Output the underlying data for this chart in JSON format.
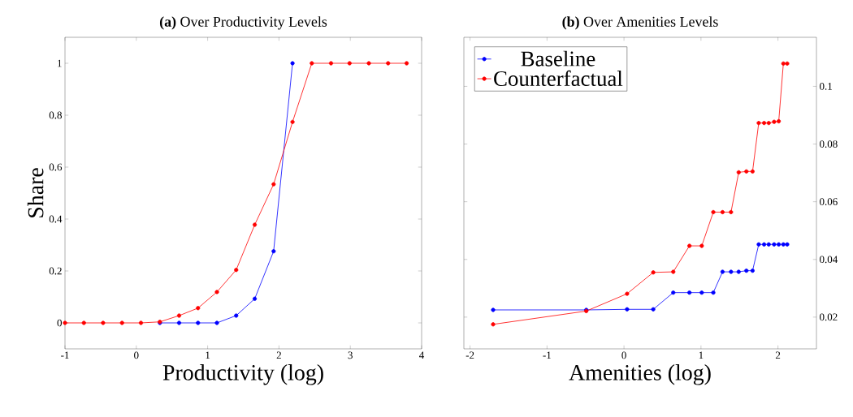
{
  "chart_data": [
    {
      "type": "line",
      "title": "**(a)** Over Productivity Levels",
      "xlabel": "Productivity (log)",
      "ylabel": "Share",
      "x": [
        -1,
        -0.735,
        -0.466,
        -0.2,
        0.065,
        0.33,
        0.6,
        0.865,
        1.13,
        1.4,
        1.66,
        1.925,
        2.19,
        2.46,
        2.73,
        2.99,
        3.26,
        3.53,
        3.79
      ],
      "series": [
        {
          "color": "#0000ff",
          "values": [
            null,
            null,
            null,
            null,
            null,
            0,
            0,
            0,
            0,
            0.028,
            0.093,
            0.276,
            1,
            null,
            null,
            null,
            null,
            null,
            null
          ]
        },
        {
          "color": "#ff0000",
          "values": [
            0,
            0,
            0,
            0,
            0,
            0.004,
            0.028,
            0.057,
            0.119,
            0.204,
            0.378,
            0.534,
            0.774,
            1,
            1,
            1,
            1,
            1,
            1
          ]
        }
      ],
      "xlim": [
        -1,
        4
      ],
      "ylim": [
        -0.1,
        1.1
      ],
      "xticks": [
        -1,
        0,
        1,
        2,
        3,
        4
      ],
      "yticks": [
        0,
        0.2,
        0.4,
        0.6,
        0.8,
        1
      ],
      "marker": "circle",
      "line_style": "solid"
    },
    {
      "type": "line",
      "title": "**(b)** Over Amenities Levels",
      "xlabel": "Amenities (log)",
      "x": [
        -1.7,
        -0.49,
        0.04,
        0.38,
        0.64,
        0.85,
        1.01,
        1.16,
        1.28,
        1.39,
        1.49,
        1.59,
        1.67,
        1.75,
        1.82,
        1.88,
        1.95,
        2.01,
        2.07,
        2.12
      ],
      "series": [
        {
          "name": "Baseline",
          "color": "#0000ff",
          "values": [
            0.0225,
            0.0225,
            0.0227,
            0.0227,
            0.0285,
            0.0285,
            0.0285,
            0.0285,
            0.0357,
            0.0357,
            0.0357,
            0.0361,
            0.0361,
            0.0452,
            0.0452,
            0.0452,
            0.0452,
            0.0452,
            0.0452,
            0.0452
          ]
        },
        {
          "name": "Counterfactual",
          "color": "#ff0000",
          "values": [
            0.0175,
            0.0221,
            0.0281,
            0.0355,
            0.0357,
            0.0447,
            0.0447,
            0.0564,
            0.0564,
            0.0564,
            0.0702,
            0.0705,
            0.0705,
            0.0873,
            0.0873,
            0.0873,
            0.0877,
            0.0879,
            0.1079,
            0.1079
          ]
        }
      ],
      "xlim": [
        -2.08,
        2.5
      ],
      "ylim": [
        0.009,
        0.117
      ],
      "xticks": [
        -2,
        -1,
        0,
        1,
        2
      ],
      "yticks": [
        0.02,
        0.04,
        0.06,
        0.08,
        0.1
      ],
      "marker": "circle",
      "line_style": "solid",
      "legend": "top left"
    }
  ]
}
